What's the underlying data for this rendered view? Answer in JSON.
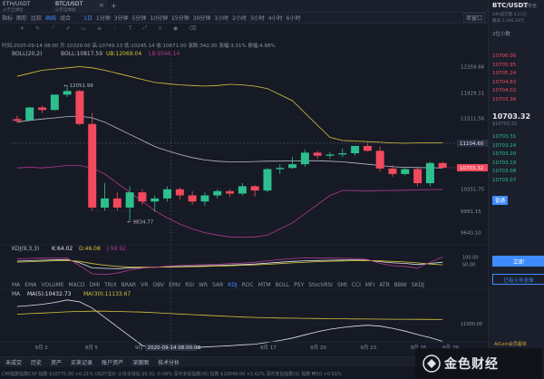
{
  "window": {
    "pair_tabs": [
      "ETH/USDT",
      "BTC/USDT"
    ],
    "pair_tab_subs": [
      "火币全球站",
      "火币全球站"
    ]
  },
  "toolbar": {
    "items": [
      "指标",
      "图形",
      "比较",
      "画线",
      "组合",
      "1日",
      "1分钟",
      "3分钟",
      "5分钟",
      "10分钟",
      "15分钟",
      "30分钟",
      "1小时",
      "2小时",
      "3小时",
      "4小时",
      "6小时"
    ],
    "active_index": 3,
    "dropdown": "单窗口"
  },
  "info_bar": {
    "text": "时间:2020-09-14 08:00  开:10329.00  高:10749.13  低:10245.14  收:10671.00  涨跌:342.00  涨幅:3.31%  振幅:4.88%"
  },
  "boll": {
    "label": "BOLL(20,2)",
    "mid": "BOLL:10817.59",
    "up": "UB:12069.04",
    "low": "LB:9566.14"
  },
  "price_axis": [
    "12359.66",
    "11929.11",
    "11511.56",
    "11104.60",
    "10703.32",
    "10351.75",
    "9991.15",
    "9643.10"
  ],
  "annotations": {
    "high": "12051.99",
    "low": "9834.77"
  },
  "current_price_label": "10703.32",
  "crosshair_price": "11104.60",
  "kdj": {
    "label": "KDJ(9,3,3)",
    "k": "K:64.02",
    "d": "D:46.08",
    "j": "J:99.92",
    "axis": [
      "100.00",
      "50.00"
    ]
  },
  "indicator_tabs": [
    "MA",
    "EMA",
    "VOLUME",
    "MACD",
    "DMI",
    "TRIX",
    "BRAR",
    "VR",
    "OBV",
    "EMV",
    "RSI",
    "WR",
    "SAR",
    "KDJ",
    "ROC",
    "MTM",
    "BOLL",
    "PSY",
    "StochRSI",
    "SMI",
    "CCI",
    "MFI",
    "ATR",
    "BBW",
    "SKDJ"
  ],
  "indicator_tabs_active": "KDJ",
  "ma": {
    "label": "MA",
    "ma5": "MA(5):10432.73",
    "ma30": "MA(30):11133.67",
    "axis": [
      "11000.00"
    ]
  },
  "date_axis": [
    "9月 2",
    "9月 5",
    "9月 8",
    "9月 11",
    "9月 17",
    "9月 20",
    "9月 23",
    "9月 26",
    "9月 29"
  ],
  "crosshair_date": "2020-09-14 08:00:00",
  "bottom_tabs": [
    "未成交",
    "历史",
    "资产",
    "买卖记录",
    "账户资产",
    "深度图",
    "技术分析"
  ],
  "ticker": "CMI指数指数CSP 指数  $10775.00 +0.21%     USDT溢价 火币全球站 $0.32 -0.09%     深币安投指数(IS) 指数 $19049.00 +1.62%     深币安投指数(S) 指数 ₩10   +0.51%",
  "right_panel": {
    "pair": "BTC/USDT",
    "exchange": "火币全",
    "change": "24h成交量 3.21亿",
    "price_line": "最高 2,346.39万",
    "section": "2位小数",
    "asks": [
      "10706.06",
      "10705.95",
      "10705.24",
      "10704.83",
      "10704.02",
      "10703.36"
    ],
    "last_price": "10703.32",
    "last_sub": "$10703.32",
    "bids": [
      "10703.31",
      "10703.24",
      "10703.20",
      "10703.19",
      "10703.08",
      "10703.07"
    ],
    "trade_tab": "普通",
    "button_login": "立即",
    "button_link": "已有火币全球",
    "footer": "AiCoin会员跟单"
  },
  "watermark": {
    "text": "金色财经"
  },
  "colors": {
    "up": "#2dc08e",
    "down": "#f2495c",
    "accent": "#3f8cff",
    "boll_up": "#d8c43a",
    "boll_mid": "#b9bcc7",
    "boll_low": "#b23a8f"
  },
  "chart_data": {
    "type": "candlestick",
    "candles": [
      {
        "o": 11500,
        "h": 11560,
        "l": 11440,
        "c": 11470
      },
      {
        "o": 11480,
        "h": 11700,
        "l": 11460,
        "c": 11690
      },
      {
        "o": 11690,
        "h": 11720,
        "l": 11600,
        "c": 11650
      },
      {
        "o": 11650,
        "h": 11900,
        "l": 11640,
        "c": 11900
      },
      {
        "o": 11900,
        "h": 12052,
        "l": 11860,
        "c": 11960
      },
      {
        "o": 11960,
        "h": 11980,
        "l": 11400,
        "c": 11420
      },
      {
        "o": 11420,
        "h": 11600,
        "l": 10000,
        "c": 10050
      },
      {
        "o": 10050,
        "h": 10450,
        "l": 10000,
        "c": 10200
      },
      {
        "o": 10200,
        "h": 10300,
        "l": 10000,
        "c": 10050
      },
      {
        "o": 10050,
        "h": 10400,
        "l": 9835,
        "c": 10300
      },
      {
        "o": 10300,
        "h": 10350,
        "l": 10100,
        "c": 10150
      },
      {
        "o": 10150,
        "h": 10250,
        "l": 9980,
        "c": 10200
      },
      {
        "o": 10200,
        "h": 10400,
        "l": 10150,
        "c": 10350
      },
      {
        "o": 10350,
        "h": 10380,
        "l": 10180,
        "c": 10250
      },
      {
        "o": 10250,
        "h": 10320,
        "l": 10100,
        "c": 10150
      },
      {
        "o": 10150,
        "h": 10300,
        "l": 10080,
        "c": 10250
      },
      {
        "o": 10250,
        "h": 10350,
        "l": 10200,
        "c": 10320
      },
      {
        "o": 10320,
        "h": 10350,
        "l": 10220,
        "c": 10280
      },
      {
        "o": 10280,
        "h": 10450,
        "l": 10250,
        "c": 10400
      },
      {
        "o": 10400,
        "h": 10420,
        "l": 10230,
        "c": 10330
      },
      {
        "o": 10330,
        "h": 10700,
        "l": 10300,
        "c": 10680
      },
      {
        "o": 10680,
        "h": 10760,
        "l": 10600,
        "c": 10700
      },
      {
        "o": 10700,
        "h": 10880,
        "l": 10680,
        "c": 10760
      },
      {
        "o": 10760,
        "h": 11000,
        "l": 10720,
        "c": 10950
      },
      {
        "o": 10950,
        "h": 10980,
        "l": 10850,
        "c": 10900
      },
      {
        "o": 10900,
        "h": 10960,
        "l": 10850,
        "c": 10920
      },
      {
        "o": 10920,
        "h": 11020,
        "l": 10880,
        "c": 10940
      },
      {
        "o": 10940,
        "h": 11060,
        "l": 10900,
        "c": 11060
      },
      {
        "o": 11060,
        "h": 11100,
        "l": 10970,
        "c": 10980
      },
      {
        "o": 10980,
        "h": 11050,
        "l": 10640,
        "c": 10690
      },
      {
        "o": 10690,
        "h": 10750,
        "l": 10550,
        "c": 10600
      },
      {
        "o": 10600,
        "h": 10700,
        "l": 10580,
        "c": 10680
      },
      {
        "o": 10680,
        "h": 10700,
        "l": 10400,
        "c": 10450
      },
      {
        "o": 10450,
        "h": 10800,
        "l": 10400,
        "c": 10780
      },
      {
        "o": 10780,
        "h": 10800,
        "l": 10690,
        "c": 10703
      }
    ],
    "boll_up": [
      12200,
      12250,
      12300,
      12320,
      12340,
      12359,
      12340,
      12300,
      12250,
      12200,
      12150,
      12100,
      12080,
      12060,
      12050,
      12040,
      12050,
      12069,
      12060,
      12040,
      12000,
      11900,
      11800,
      11600,
      11400,
      11200,
      11150,
      11140,
      11130,
      11120,
      11110,
      11104,
      11110,
      11110,
      11110
    ],
    "boll_mid": [
      11450,
      11480,
      11500,
      11520,
      11540,
      11550,
      11520,
      11450,
      11350,
      11250,
      11150,
      11050,
      10980,
      10920,
      10870,
      10830,
      10810,
      10800,
      10800,
      10805,
      10810,
      10812,
      10815,
      10818,
      10818,
      10810,
      10800,
      10780,
      10760,
      10740,
      10720,
      10710,
      10706,
      10703,
      10700
    ],
    "boll_low": [
      10700,
      10710,
      10700,
      10720,
      10740,
      10740,
      10700,
      10600,
      10450,
      10300,
      10150,
      10000,
      9880,
      9780,
      9700,
      9640,
      9600,
      9570,
      9566,
      9570,
      9600,
      9700,
      9800,
      9950,
      10100,
      10250,
      10330,
      10330,
      10320,
      10330,
      10330,
      10335,
      10340,
      10345,
      10350
    ],
    "kdj_k": [
      72,
      75,
      78,
      80,
      82,
      60,
      25,
      22,
      20,
      25,
      28,
      30,
      33,
      35,
      38,
      40,
      42,
      45,
      48,
      52,
      58,
      64,
      70,
      74,
      76,
      78,
      79,
      80,
      78,
      68,
      60,
      56,
      48,
      56,
      64
    ],
    "kdj_d": [
      65,
      68,
      71,
      74,
      77,
      70,
      55,
      44,
      36,
      32,
      30,
      30,
      31,
      32,
      34,
      36,
      38,
      40,
      43,
      46,
      50,
      55,
      60,
      64,
      68,
      71,
      73,
      75,
      76,
      74,
      70,
      66,
      60,
      52,
      46
    ],
    "kdj_j": [
      86,
      90,
      92,
      92,
      92,
      40,
      -15,
      -20,
      -10,
      10,
      24,
      30,
      37,
      41,
      46,
      48,
      50,
      55,
      58,
      64,
      74,
      82,
      90,
      94,
      92,
      92,
      91,
      90,
      82,
      56,
      40,
      36,
      24,
      64,
      100
    ],
    "ma5": [
      11550,
      11580,
      11620,
      11680,
      11760,
      11700,
      11500,
      11200,
      10900,
      10600,
      10300,
      10200,
      10180,
      10210,
      10230,
      10250,
      10270,
      10290,
      10320,
      10340,
      10400,
      10460,
      10540,
      10640,
      10740,
      10820,
      10880,
      10920,
      10950,
      10920,
      10850,
      10760,
      10650,
      10550,
      10432
    ],
    "ma30": [
      11300,
      11320,
      11340,
      11360,
      11380,
      11390,
      11400,
      11400,
      11390,
      11380,
      11370,
      11350,
      11330,
      11310,
      11290,
      11270,
      11250,
      11230,
      11210,
      11200,
      11190,
      11180,
      11175,
      11170,
      11165,
      11160,
      11155,
      11150,
      11148,
      11145,
      11142,
      11140,
      11138,
      11135,
      11133
    ],
    "y_range": [
      9500,
      12500
    ],
    "kdj_range": [
      -40,
      140
    ],
    "ma_range": [
      10300,
      11900
    ]
  }
}
